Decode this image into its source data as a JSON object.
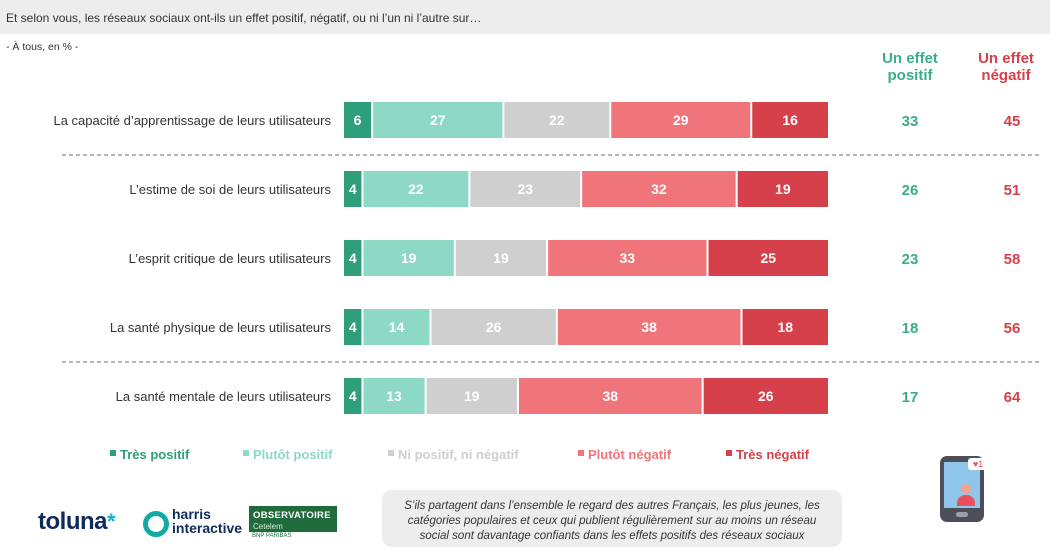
{
  "header": {
    "question": "Et selon vous, les réseaux sociaux ont-ils un effet positif, négatif, ou ni l’un ni l’autre sur…",
    "base": "- À tous, en % -"
  },
  "columns": {
    "positive_line1": "Un effet",
    "positive_line2": "positif",
    "negative_line1": "Un effet",
    "negative_line2": "négatif"
  },
  "colors": {
    "tres_positif": "#2f9e7a",
    "plutot_positif": "#8ed8c6",
    "ni_ni": "#cfcfcf",
    "plutot_negatif": "#f0757b",
    "tres_negatif": "#d6404a",
    "positive_text": "#3aad8a",
    "negative_text": "#d6404a"
  },
  "chart_data": {
    "type": "bar",
    "orientation": "horizontal-stacked",
    "categories": [
      "La capacité d’apprentissage de leurs utilisateurs",
      "L’estime de soi de leurs utilisateurs",
      "L’esprit critique de leurs utilisateurs",
      "La santé physique de leurs utilisateurs",
      "La santé mentale de leurs utilisateurs"
    ],
    "series": [
      {
        "name": "Très positif",
        "values": [
          6,
          4,
          4,
          4,
          4
        ]
      },
      {
        "name": "Plutôt positif",
        "values": [
          27,
          22,
          19,
          14,
          13
        ]
      },
      {
        "name": "Ni positif, ni négatif",
        "values": [
          22,
          23,
          19,
          26,
          19
        ]
      },
      {
        "name": "Plutôt négatif",
        "values": [
          29,
          32,
          33,
          38,
          38
        ]
      },
      {
        "name": "Très négatif",
        "values": [
          16,
          19,
          25,
          18,
          26
        ]
      }
    ],
    "totals_positive": [
      33,
      26,
      23,
      18,
      17
    ],
    "totals_negative": [
      45,
      51,
      58,
      56,
      64
    ],
    "legend_position": "bottom"
  },
  "footer": {
    "note": "S’ils partagent dans l’ensemble le regard des autres Français, les plus jeunes, les catégories populaires et ceux qui publient régulièrement sur au moins un réseau social sont davantage confiants dans les effets positifs des réseaux sociaux",
    "logo_toluna": "toluna",
    "logo_harris_1": "harris",
    "logo_harris_2": "interactive",
    "logo_obs_1": "OBSERVATOIRE",
    "logo_obs_2": "Cetelem",
    "logo_obs_3": "BNP PARIBAS",
    "phone_icon": "smartphone-social-icon",
    "heart_icon": "heart-notification-icon"
  }
}
